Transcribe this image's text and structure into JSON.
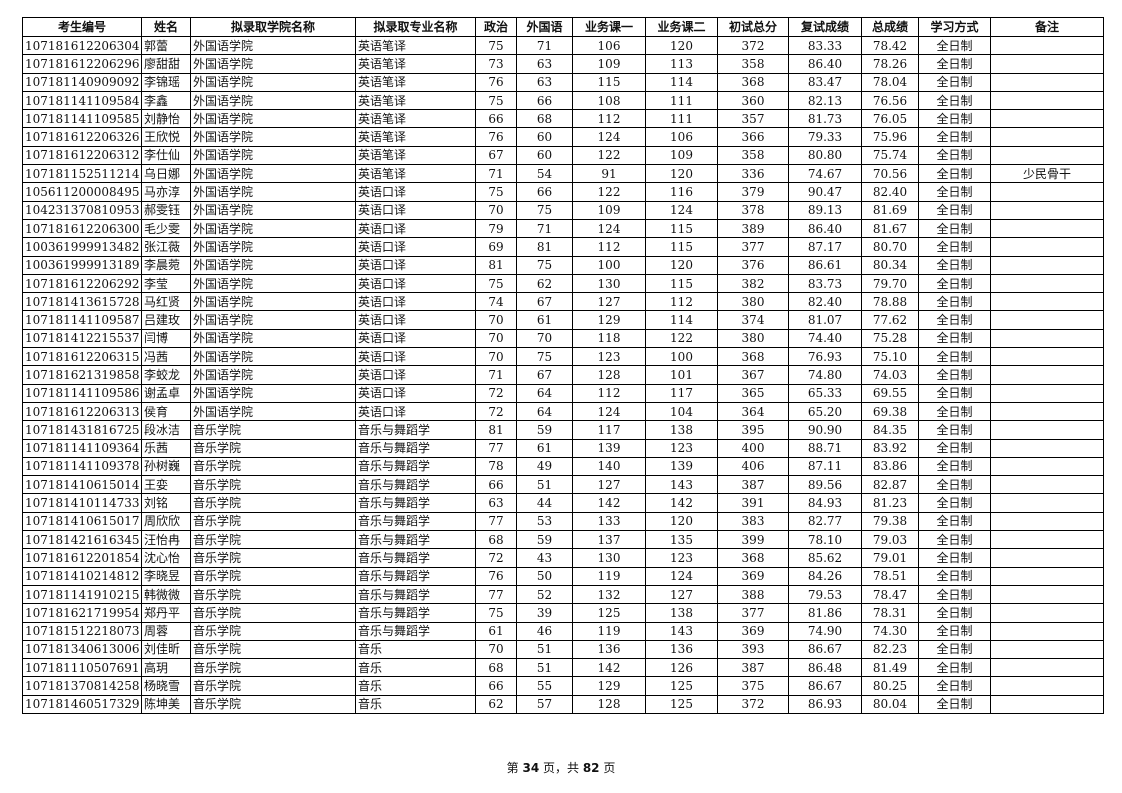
{
  "headers": [
    "考生编号",
    "姓名",
    "拟录取学院名称",
    "拟录取专业名称",
    "政治",
    "外国语",
    "业务课一",
    "业务课二",
    "初试总分",
    "复试成绩",
    "总成绩",
    "学习方式",
    "备注"
  ],
  "rows": [
    [
      "107181612206304",
      "郭蕾",
      "外国语学院",
      "英语笔译",
      "75",
      "71",
      "106",
      "120",
      "372",
      "83.33",
      "78.42",
      "全日制",
      ""
    ],
    [
      "107181612206296",
      "廖甜甜",
      "外国语学院",
      "英语笔译",
      "73",
      "63",
      "109",
      "113",
      "358",
      "86.40",
      "78.26",
      "全日制",
      ""
    ],
    [
      "107181140909092",
      "李锦瑶",
      "外国语学院",
      "英语笔译",
      "76",
      "63",
      "115",
      "114",
      "368",
      "83.47",
      "78.04",
      "全日制",
      ""
    ],
    [
      "107181141109584",
      "李鑫",
      "外国语学院",
      "英语笔译",
      "75",
      "66",
      "108",
      "111",
      "360",
      "82.13",
      "76.56",
      "全日制",
      ""
    ],
    [
      "107181141109585",
      "刘静怡",
      "外国语学院",
      "英语笔译",
      "66",
      "68",
      "112",
      "111",
      "357",
      "81.73",
      "76.05",
      "全日制",
      ""
    ],
    [
      "107181612206326",
      "王欣悦",
      "外国语学院",
      "英语笔译",
      "76",
      "60",
      "124",
      "106",
      "366",
      "79.33",
      "75.96",
      "全日制",
      ""
    ],
    [
      "107181612206312",
      "李仕仙",
      "外国语学院",
      "英语笔译",
      "67",
      "60",
      "122",
      "109",
      "358",
      "80.80",
      "75.74",
      "全日制",
      ""
    ],
    [
      "107181152511214",
      "乌日娜",
      "外国语学院",
      "英语笔译",
      "71",
      "54",
      "91",
      "120",
      "336",
      "74.67",
      "70.56",
      "全日制",
      "少民骨干"
    ],
    [
      "105611200008495",
      "马亦淳",
      "外国语学院",
      "英语口译",
      "75",
      "66",
      "122",
      "116",
      "379",
      "90.47",
      "82.40",
      "全日制",
      ""
    ],
    [
      "104231370810953",
      "郝雯钰",
      "外国语学院",
      "英语口译",
      "70",
      "75",
      "109",
      "124",
      "378",
      "89.13",
      "81.69",
      "全日制",
      ""
    ],
    [
      "107181612206300",
      "毛少雯",
      "外国语学院",
      "英语口译",
      "79",
      "71",
      "124",
      "115",
      "389",
      "86.40",
      "81.67",
      "全日制",
      ""
    ],
    [
      "100361999913482",
      "张江薇",
      "外国语学院",
      "英语口译",
      "69",
      "81",
      "112",
      "115",
      "377",
      "87.17",
      "80.70",
      "全日制",
      ""
    ],
    [
      "100361999913189",
      "李晨菀",
      "外国语学院",
      "英语口译",
      "81",
      "75",
      "100",
      "120",
      "376",
      "86.61",
      "80.34",
      "全日制",
      ""
    ],
    [
      "107181612206292",
      "李莹",
      "外国语学院",
      "英语口译",
      "75",
      "62",
      "130",
      "115",
      "382",
      "83.73",
      "79.70",
      "全日制",
      ""
    ],
    [
      "107181413615728",
      "马红贤",
      "外国语学院",
      "英语口译",
      "74",
      "67",
      "127",
      "112",
      "380",
      "82.40",
      "78.88",
      "全日制",
      ""
    ],
    [
      "107181141109587",
      "吕建玫",
      "外国语学院",
      "英语口译",
      "70",
      "61",
      "129",
      "114",
      "374",
      "81.07",
      "77.62",
      "全日制",
      ""
    ],
    [
      "107181412215537",
      "闫博",
      "外国语学院",
      "英语口译",
      "70",
      "70",
      "118",
      "122",
      "380",
      "74.40",
      "75.28",
      "全日制",
      ""
    ],
    [
      "107181612206315",
      "冯茜",
      "外国语学院",
      "英语口译",
      "70",
      "75",
      "123",
      "100",
      "368",
      "76.93",
      "75.10",
      "全日制",
      ""
    ],
    [
      "107181621319858",
      "李蛟龙",
      "外国语学院",
      "英语口译",
      "71",
      "67",
      "128",
      "101",
      "367",
      "74.80",
      "74.03",
      "全日制",
      ""
    ],
    [
      "107181141109586",
      "谢孟卓",
      "外国语学院",
      "英语口译",
      "72",
      "64",
      "112",
      "117",
      "365",
      "65.33",
      "69.55",
      "全日制",
      ""
    ],
    [
      "107181612206313",
      "侯育",
      "外国语学院",
      "英语口译",
      "72",
      "64",
      "124",
      "104",
      "364",
      "65.20",
      "69.38",
      "全日制",
      ""
    ],
    [
      "107181431816725",
      "段冰洁",
      "音乐学院",
      "音乐与舞蹈学",
      "81",
      "59",
      "117",
      "138",
      "395",
      "90.90",
      "84.35",
      "全日制",
      ""
    ],
    [
      "107181141109364",
      "乐茜",
      "音乐学院",
      "音乐与舞蹈学",
      "77",
      "61",
      "139",
      "123",
      "400",
      "88.71",
      "83.92",
      "全日制",
      ""
    ],
    [
      "107181141109378",
      "孙树巍",
      "音乐学院",
      "音乐与舞蹈学",
      "78",
      "49",
      "140",
      "139",
      "406",
      "87.11",
      "83.86",
      "全日制",
      ""
    ],
    [
      "107181410615014",
      "王娈",
      "音乐学院",
      "音乐与舞蹈学",
      "66",
      "51",
      "127",
      "143",
      "387",
      "89.56",
      "82.87",
      "全日制",
      ""
    ],
    [
      "107181410114733",
      "刘铭",
      "音乐学院",
      "音乐与舞蹈学",
      "63",
      "44",
      "142",
      "142",
      "391",
      "84.93",
      "81.23",
      "全日制",
      ""
    ],
    [
      "107181410615017",
      "周欣欣",
      "音乐学院",
      "音乐与舞蹈学",
      "77",
      "53",
      "133",
      "120",
      "383",
      "82.77",
      "79.38",
      "全日制",
      ""
    ],
    [
      "107181421616345",
      "汪怡冉",
      "音乐学院",
      "音乐与舞蹈学",
      "68",
      "59",
      "137",
      "135",
      "399",
      "78.10",
      "79.03",
      "全日制",
      ""
    ],
    [
      "107181612201854",
      "沈心怡",
      "音乐学院",
      "音乐与舞蹈学",
      "72",
      "43",
      "130",
      "123",
      "368",
      "85.62",
      "79.01",
      "全日制",
      ""
    ],
    [
      "107181410214812",
      "李晓昱",
      "音乐学院",
      "音乐与舞蹈学",
      "76",
      "50",
      "119",
      "124",
      "369",
      "84.26",
      "78.51",
      "全日制",
      ""
    ],
    [
      "107181141910215",
      "韩微微",
      "音乐学院",
      "音乐与舞蹈学",
      "77",
      "52",
      "132",
      "127",
      "388",
      "79.53",
      "78.47",
      "全日制",
      ""
    ],
    [
      "107181621719954",
      "郑丹平",
      "音乐学院",
      "音乐与舞蹈学",
      "75",
      "39",
      "125",
      "138",
      "377",
      "81.86",
      "78.31",
      "全日制",
      ""
    ],
    [
      "107181512218073",
      "周蓉",
      "音乐学院",
      "音乐与舞蹈学",
      "61",
      "46",
      "119",
      "143",
      "369",
      "74.90",
      "74.30",
      "全日制",
      ""
    ],
    [
      "107181340613006",
      "刘佳昕",
      "音乐学院",
      "音乐",
      "70",
      "51",
      "136",
      "136",
      "393",
      "86.67",
      "82.23",
      "全日制",
      ""
    ],
    [
      "107181110507691",
      "高玥",
      "音乐学院",
      "音乐",
      "68",
      "51",
      "142",
      "126",
      "387",
      "86.48",
      "81.49",
      "全日制",
      ""
    ],
    [
      "107181370814258",
      "杨晓雪",
      "音乐学院",
      "音乐",
      "66",
      "55",
      "129",
      "125",
      "375",
      "86.67",
      "80.25",
      "全日制",
      ""
    ],
    [
      "107181460517329",
      "陈坤美",
      "音乐学院",
      "音乐",
      "62",
      "57",
      "128",
      "125",
      "372",
      "86.93",
      "80.04",
      "全日制",
      ""
    ]
  ],
  "footer": {
    "prefix": "第 ",
    "page": "34",
    "middle": " 页，共 ",
    "total": "82",
    "suffix": " 页"
  }
}
